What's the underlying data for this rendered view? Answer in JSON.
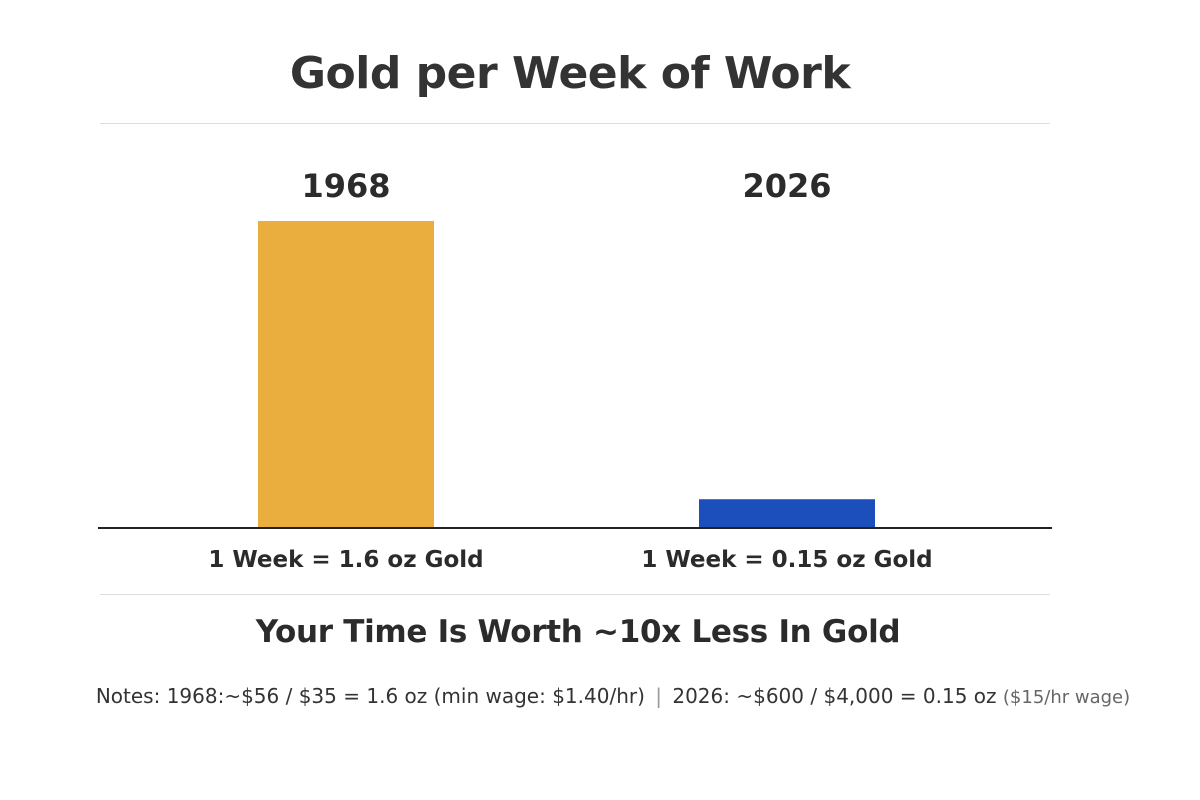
{
  "title": "Gold per Week of Work",
  "headline": "Your Time Is Worth ~10x Less In Gold",
  "notes": {
    "part1": "Notes: 1968:~$56 / $35 = 1.6 oz (min wage: $1.40/hr)",
    "separator": "|",
    "part2": "2026: ~$600 / $4,000 = 0.15 oz",
    "part3": "($15/hr wage)"
  },
  "chart_data": {
    "type": "bar",
    "title": "Gold per Week of Work",
    "categories": [
      "1968",
      "2026"
    ],
    "values": [
      1.6,
      0.15
    ],
    "value_labels": [
      "1 Week = 1.6 oz Gold",
      "1 Week = 0.15 oz Gold"
    ],
    "colors": [
      "#E9AE3E",
      "#1C4FBB"
    ],
    "unit": "oz",
    "ylim": [
      0,
      1.6
    ],
    "grid": false,
    "legend": "none"
  }
}
